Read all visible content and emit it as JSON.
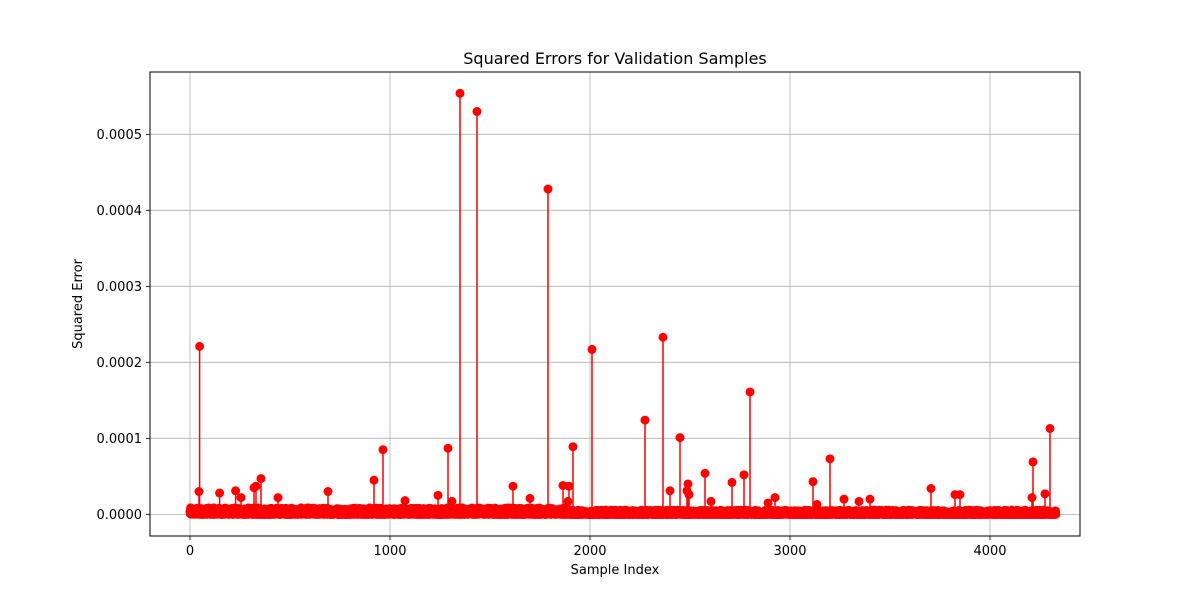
{
  "chart_data": {
    "type": "stem",
    "title": "Squared Errors for Validation Samples",
    "xlabel": "Sample Index",
    "ylabel": "Squared Error",
    "xlim": [
      -200,
      4450
    ],
    "ylim": [
      -2.85e-05,
      0.000582
    ],
    "xticks": [
      0,
      1000,
      2000,
      3000,
      4000
    ],
    "xtick_labels": [
      "0",
      "1000",
      "2000",
      "3000",
      "4000"
    ],
    "yticks": [
      0,
      0.0001,
      0.0002,
      0.0003,
      0.0004,
      0.0005
    ],
    "ytick_labels": [
      "0.0000",
      "0.0001",
      "0.0002",
      "0.0003",
      "0.0004",
      "0.0005"
    ],
    "grid": true,
    "color": "#ff0000",
    "n_samples": 4330,
    "notable_points": [
      {
        "x": 45,
        "y": 3e-05
      },
      {
        "x": 48,
        "y": 0.000221
      },
      {
        "x": 148,
        "y": 2.8e-05
      },
      {
        "x": 228,
        "y": 3.1e-05
      },
      {
        "x": 255,
        "y": 2.2e-05
      },
      {
        "x": 320,
        "y": 3.5e-05
      },
      {
        "x": 330,
        "y": 3.7e-05
      },
      {
        "x": 355,
        "y": 4.7e-05
      },
      {
        "x": 440,
        "y": 2.2e-05
      },
      {
        "x": 690,
        "y": 3e-05
      },
      {
        "x": 920,
        "y": 4.5e-05
      },
      {
        "x": 965,
        "y": 8.5e-05
      },
      {
        "x": 1075,
        "y": 1.8e-05
      },
      {
        "x": 1240,
        "y": 2.5e-05
      },
      {
        "x": 1290,
        "y": 8.7e-05
      },
      {
        "x": 1310,
        "y": 1.7e-05
      },
      {
        "x": 1350,
        "y": 0.000554
      },
      {
        "x": 1435,
        "y": 0.00053
      },
      {
        "x": 1615,
        "y": 3.7e-05
      },
      {
        "x": 1700,
        "y": 2.1e-05
      },
      {
        "x": 1790,
        "y": 0.000428
      },
      {
        "x": 1865,
        "y": 3.8e-05
      },
      {
        "x": 1890,
        "y": 1.7e-05
      },
      {
        "x": 1895,
        "y": 3.7e-05
      },
      {
        "x": 1915,
        "y": 8.9e-05
      },
      {
        "x": 2010,
        "y": 0.000217
      },
      {
        "x": 2275,
        "y": 0.000124
      },
      {
        "x": 2365,
        "y": 0.000233
      },
      {
        "x": 2400,
        "y": 3.1e-05
      },
      {
        "x": 2450,
        "y": 0.000101
      },
      {
        "x": 2485,
        "y": 3.1e-05
      },
      {
        "x": 2490,
        "y": 4e-05
      },
      {
        "x": 2495,
        "y": 2.6e-05
      },
      {
        "x": 2575,
        "y": 5.4e-05
      },
      {
        "x": 2605,
        "y": 1.7e-05
      },
      {
        "x": 2710,
        "y": 4.2e-05
      },
      {
        "x": 2770,
        "y": 5.2e-05
      },
      {
        "x": 2800,
        "y": 0.000161
      },
      {
        "x": 2890,
        "y": 1.5e-05
      },
      {
        "x": 2925,
        "y": 2.2e-05
      },
      {
        "x": 3115,
        "y": 4.3e-05
      },
      {
        "x": 3135,
        "y": 1.3e-05
      },
      {
        "x": 3200,
        "y": 7.3e-05
      },
      {
        "x": 3270,
        "y": 2e-05
      },
      {
        "x": 3345,
        "y": 1.7e-05
      },
      {
        "x": 3400,
        "y": 2e-05
      },
      {
        "x": 3705,
        "y": 3.4e-05
      },
      {
        "x": 3825,
        "y": 2.6e-05
      },
      {
        "x": 3850,
        "y": 2.6e-05
      },
      {
        "x": 4210,
        "y": 2.2e-05
      },
      {
        "x": 4215,
        "y": 6.9e-05
      },
      {
        "x": 4275,
        "y": 2.7e-05
      },
      {
        "x": 4300,
        "y": 0.000113
      }
    ]
  }
}
